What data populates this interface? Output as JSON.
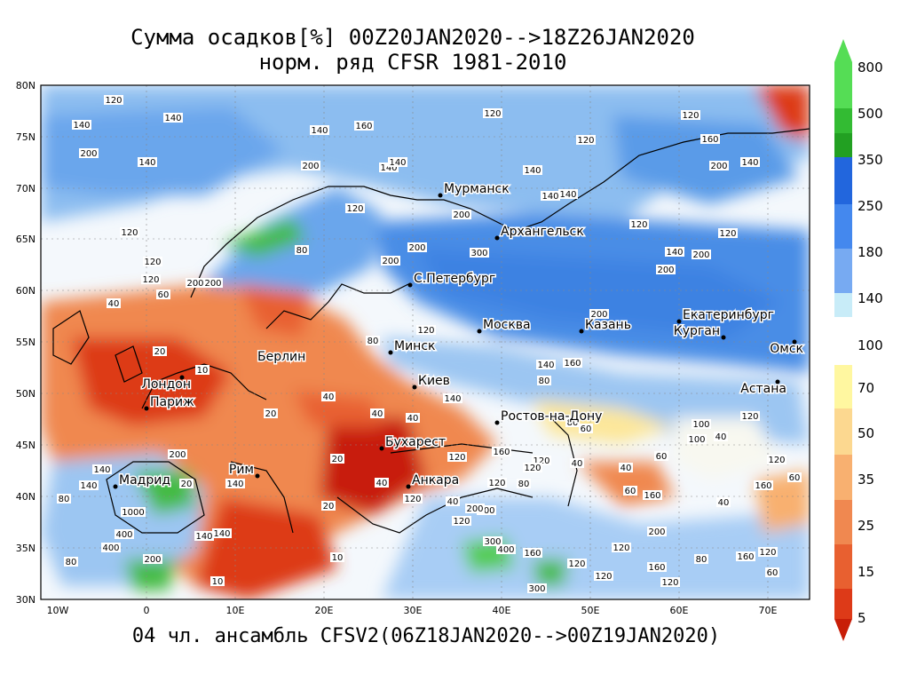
{
  "title_line1": "Сумма осадков[%] 00Z20JAN2020-->18Z26JAN2020",
  "title_line2": "норм. ряд CFSR 1981-2010",
  "subtitle": "04 чл. ансамбль CFSV2(06Z18JAN2020-->00Z19JAN2020)",
  "lat_labels": [
    "80N",
    "75N",
    "70N",
    "65N",
    "60N",
    "55N",
    "50N",
    "45N",
    "40N",
    "35N",
    "30N"
  ],
  "lon_labels": [
    "10W",
    "0",
    "10E",
    "20E",
    "30E",
    "40E",
    "50E",
    "60E",
    "70E"
  ],
  "colorbar": {
    "upper_labels": [
      "800",
      "500",
      "350",
      "250",
      "180",
      "140",
      "100"
    ],
    "lower_labels": [
      "70",
      "50",
      "35",
      "25",
      "15",
      "5"
    ],
    "upper_colors": [
      "#55dd55",
      "#33bb33",
      "#22a022",
      "#2266dd",
      "#4488ee",
      "#77aaf2",
      "#a8cdf5",
      "#c8ecf8"
    ],
    "lower_colors": [
      "#fff7a0",
      "#fcd890",
      "#f8b070",
      "#f08850",
      "#e86030",
      "#dd3a18",
      "#c81e08"
    ]
  },
  "cities": [
    {
      "name": "Мурманск"
    },
    {
      "name": "Архангельск"
    },
    {
      "name": "С.Петербург"
    },
    {
      "name": "Москва"
    },
    {
      "name": "Казань"
    },
    {
      "name": "Екатеринбург"
    },
    {
      "name": "Курган"
    },
    {
      "name": "Омск"
    },
    {
      "name": "Астана"
    },
    {
      "name": "Минск"
    },
    {
      "name": "Киев"
    },
    {
      "name": "Берлин"
    },
    {
      "name": "Лондон"
    },
    {
      "name": "Париж"
    },
    {
      "name": "Ростов-на-Дону"
    },
    {
      "name": "Бухарест"
    },
    {
      "name": "Анкара"
    },
    {
      "name": "Рим"
    },
    {
      "name": "Мадрид"
    }
  ],
  "contour_labels": [
    "100",
    "120",
    "160",
    "140",
    "80",
    "40",
    "60",
    "200",
    "20",
    "10",
    "300",
    "400",
    "1000"
  ]
}
